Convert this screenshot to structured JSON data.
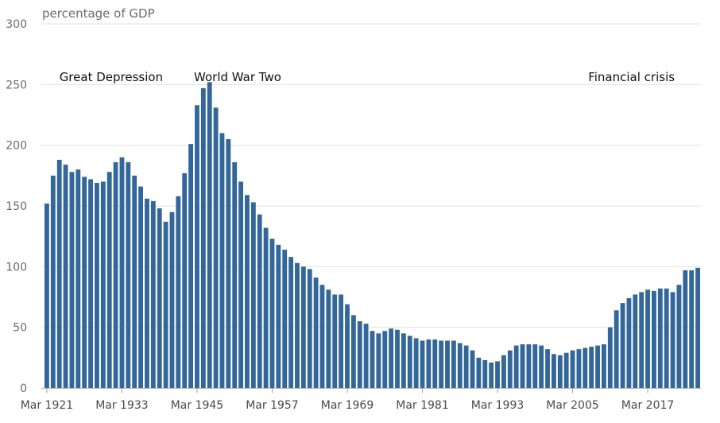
{
  "chart_data": {
    "type": "bar",
    "title": "",
    "ylabel": "percentage of GDP",
    "xlabel": "",
    "ylim": [
      0,
      300
    ],
    "yticks": [
      0,
      50,
      100,
      150,
      200,
      250,
      300
    ],
    "grid": true,
    "bar_color": "#336699",
    "start_year": 1921,
    "x_tick_labels": [
      {
        "year": 1921,
        "label": "Mar 1921"
      },
      {
        "year": 1933,
        "label": "Mar 1933"
      },
      {
        "year": 1945,
        "label": "Mar 1945"
      },
      {
        "year": 1957,
        "label": "Mar 1957"
      },
      {
        "year": 1969,
        "label": "Mar 1969"
      },
      {
        "year": 1981,
        "label": "Mar 1981"
      },
      {
        "year": 1993,
        "label": "Mar 1993"
      },
      {
        "year": 2005,
        "label": "Mar 2005"
      },
      {
        "year": 2017,
        "label": "Mar 2017"
      }
    ],
    "annotations": [
      {
        "year": 1923,
        "text": "Great Depression"
      },
      {
        "year": 1944.5,
        "text": "World War Two"
      },
      {
        "year": 2007.5,
        "text": "Financial crisis"
      }
    ],
    "values": [
      152,
      175,
      188,
      184,
      178,
      180,
      174,
      172,
      169,
      170,
      178,
      186,
      190,
      186,
      175,
      166,
      156,
      154,
      148,
      137,
      145,
      158,
      177,
      201,
      233,
      247,
      252,
      231,
      210,
      205,
      186,
      170,
      159,
      153,
      143,
      132,
      123,
      118,
      114,
      108,
      103,
      100,
      98,
      91,
      85,
      81,
      77,
      77,
      69,
      60,
      55,
      53,
      47,
      45,
      47,
      49,
      48,
      45,
      43,
      41,
      39,
      40,
      40,
      39,
      39,
      39,
      37,
      35,
      31,
      25,
      23,
      21,
      22,
      27,
      31,
      35,
      36,
      36,
      36,
      35,
      32,
      28,
      27,
      29,
      31,
      32,
      33,
      34,
      35,
      36,
      50,
      64,
      70,
      74,
      77,
      79,
      81,
      80,
      82,
      82,
      79,
      85,
      97,
      97,
      99
    ]
  }
}
